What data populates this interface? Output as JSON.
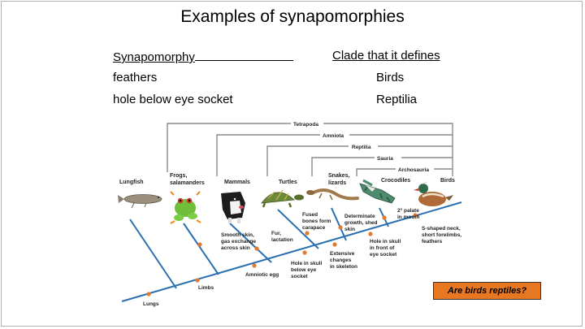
{
  "title": "Examples of synapomorphies",
  "table": {
    "header_left": "Synapomorphy",
    "header_right": "Clade that it defines",
    "rows": [
      {
        "trait": "feathers",
        "clade": "Birds"
      },
      {
        "trait": "hole below eye socket",
        "clade": "Reptilia"
      }
    ]
  },
  "brackets": [
    "Tetrapoda",
    "Amniota",
    "Reptilia",
    "Sauria",
    "Archosauria"
  ],
  "taxa": [
    "Lungfish",
    "Frogs,",
    "salamanders",
    "Mammals",
    "Turtles",
    "Snakes,",
    "lizards",
    "Crocodiles",
    "Birds"
  ],
  "traits": {
    "lungs": "Lungs",
    "limbs": "Limbs",
    "amniotic_egg": "Amniotic egg",
    "smooth_skin": [
      "Smooth skin,",
      "gas exchange",
      "across skin"
    ],
    "fur": [
      "Fur,",
      "lactation"
    ],
    "hole_skull_below": [
      "Hole in skull",
      "below eye",
      "socket"
    ],
    "fused": [
      "Fused",
      "bones form",
      "carapace"
    ],
    "extensive": [
      "Extensive",
      "changes",
      "in skeleton"
    ],
    "determinate": [
      "Determinate",
      "growth, shed",
      "skin"
    ],
    "hole_skull_front": [
      "Hole in skull",
      "in front of",
      "eye socket"
    ],
    "palate": [
      "2° palate",
      "in mouth"
    ],
    "s_neck": [
      "S-shaped neck,",
      "short forelimbs,",
      "feathers"
    ]
  },
  "callout": "Are birds reptiles?",
  "colors": {
    "branch": "#2a6fb0",
    "dot": "#e07a2e",
    "bracket": "#8a8a8a",
    "callout": "#e87722"
  }
}
